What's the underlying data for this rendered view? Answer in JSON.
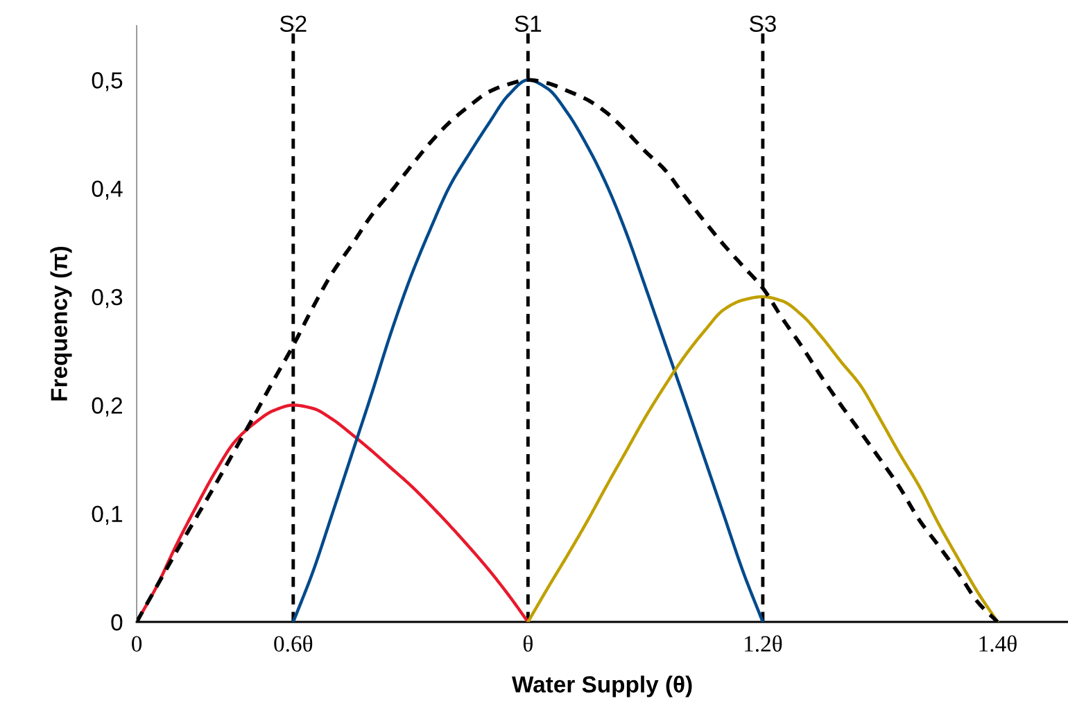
{
  "chart_data": {
    "type": "line",
    "xlabel": "Water Supply (θ)",
    "ylabel": "Frequency (π)",
    "categories": [
      "0",
      null,
      null,
      null,
      null,
      null,
      null,
      null,
      "0.6θ",
      null,
      null,
      null,
      null,
      null,
      null,
      null,
      null,
      null,
      null,
      null,
      "θ",
      null,
      null,
      null,
      null,
      null,
      null,
      null,
      null,
      null,
      null,
      null,
      "1.2θ",
      null,
      null,
      null,
      null,
      null,
      null,
      null,
      null,
      null,
      null,
      null,
      "1.4θ",
      null,
      null,
      null
    ],
    "ylim": [
      0,
      0.55
    ],
    "yticks": [
      0,
      {
        "value": 0.1,
        "label": "0,1"
      },
      {
        "value": 0.2,
        "label": "0,2"
      },
      {
        "value": 0.3,
        "label": "0,3"
      },
      {
        "value": 0.4,
        "label": "0,4"
      },
      {
        "value": 0.5,
        "label": "0,5"
      }
    ],
    "grid": false,
    "legend": false,
    "marker": "none",
    "series": [
      {
        "color": "#e8192c",
        "line_style": "solid",
        "values": [
          0,
          0.032,
          0.07,
          0.105,
          0.138,
          0.166,
          0.183,
          0.195,
          0.2,
          0.197,
          0.187,
          0.173,
          0.158,
          0.142,
          0.126,
          0.108,
          0.089,
          0.069,
          0.048,
          0.025,
          0,
          null,
          null,
          null,
          null,
          null,
          null,
          null,
          null,
          null,
          null,
          null,
          null,
          null,
          null,
          null,
          null,
          null,
          null,
          null,
          null,
          null,
          null,
          null,
          null,
          null,
          null,
          null
        ]
      },
      {
        "color": "#004a8c",
        "line_style": "solid",
        "values": [
          null,
          null,
          null,
          null,
          null,
          null,
          null,
          null,
          0,
          0.046,
          0.1,
          0.155,
          0.21,
          0.267,
          0.318,
          0.362,
          0.402,
          0.432,
          0.46,
          0.486,
          0.5,
          0.492,
          0.47,
          0.44,
          0.404,
          0.36,
          0.309,
          0.257,
          0.205,
          0.152,
          0.099,
          0.046,
          0,
          null,
          null,
          null,
          null,
          null,
          null,
          null,
          null,
          null,
          null,
          null,
          null,
          null,
          null,
          null
        ]
      },
      {
        "color": "#c0a000",
        "line_style": "solid",
        "values": [
          null,
          null,
          null,
          null,
          null,
          null,
          null,
          null,
          null,
          null,
          null,
          null,
          null,
          null,
          null,
          null,
          null,
          null,
          null,
          null,
          0,
          0.031,
          0.061,
          0.092,
          0.125,
          0.157,
          0.189,
          0.218,
          0.245,
          0.268,
          0.288,
          0.297,
          0.3,
          0.296,
          0.283,
          0.263,
          0.24,
          0.218,
          0.187,
          0.155,
          0.125,
          0.09,
          0.058,
          0.027,
          0,
          null,
          null,
          null
        ]
      },
      {
        "color": "#000000",
        "line_style": "dashed",
        "values": [
          0,
          0.032,
          0.064,
          0.095,
          0.126,
          0.158,
          0.19,
          0.223,
          0.255,
          0.29,
          0.322,
          0.348,
          0.375,
          0.397,
          0.42,
          0.442,
          0.461,
          0.476,
          0.489,
          0.496,
          0.5,
          0.497,
          0.49,
          0.482,
          0.47,
          0.453,
          0.434,
          0.417,
          0.393,
          0.37,
          0.348,
          0.328,
          0.308,
          0.28,
          0.254,
          0.226,
          0.2,
          0.175,
          0.15,
          0.124,
          0.094,
          0.07,
          0.045,
          0.018,
          0,
          null,
          null,
          null
        ]
      }
    ],
    "ref_lines": [
      {
        "axis": "x",
        "value": "0.6θ",
        "label": "S2",
        "color": "#000000",
        "line_style": "dashed"
      },
      {
        "axis": "x",
        "value": "θ",
        "label": "S1",
        "color": "#000000",
        "line_style": "dashed"
      },
      {
        "axis": "x",
        "value": "1.2θ",
        "label": "S3",
        "color": "#000000",
        "line_style": "dashed"
      }
    ]
  }
}
